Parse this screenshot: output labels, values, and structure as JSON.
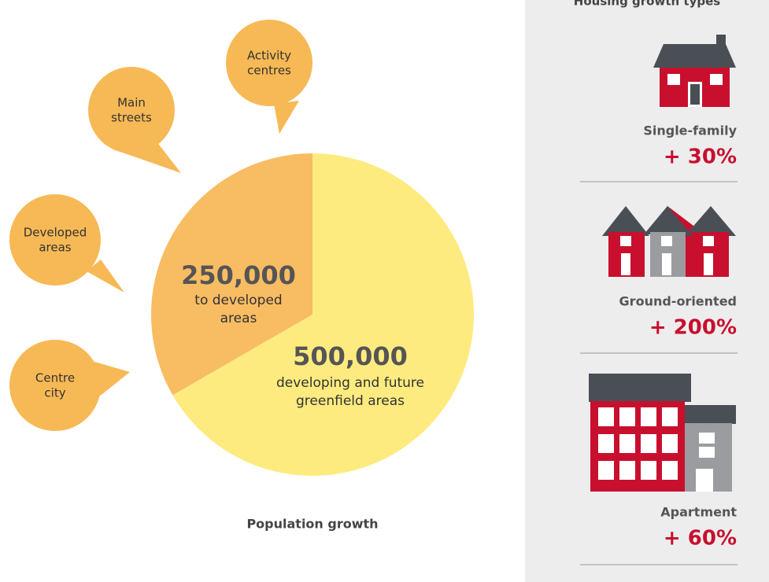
{
  "chart_data": {
    "type": "pie",
    "title": "Population growth",
    "values": [
      250000,
      500000
    ],
    "value_labels": [
      "250,000",
      "500,000"
    ],
    "categories": [
      [
        "to developed",
        "areas"
      ],
      [
        "developing and future",
        "greenfield areas"
      ]
    ],
    "colors": [
      "#f8bc63",
      "#fdeb7f"
    ]
  },
  "bubbles": [
    [
      "Main",
      "streets"
    ],
    [
      "Activity",
      "centres"
    ],
    [
      "Developed",
      "areas"
    ],
    [
      "Centre",
      "city"
    ]
  ],
  "housing": {
    "title": "Housing growth types",
    "types": [
      {
        "name": "Single-family",
        "change": "+ 30%"
      },
      {
        "name": "Ground-oriented",
        "change": "+ 200%"
      },
      {
        "name": "Apartment",
        "change": "+ 60%"
      }
    ]
  }
}
